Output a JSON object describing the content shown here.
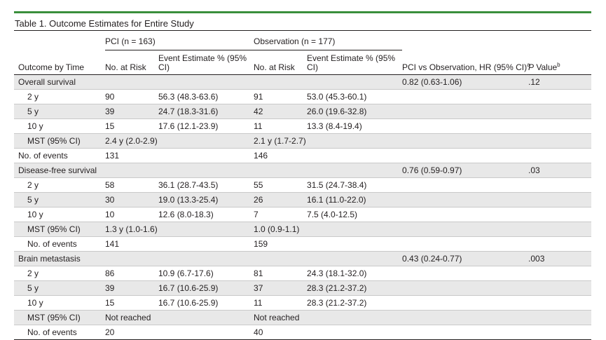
{
  "table_title": "Table 1. Outcome Estimates for Entire Study",
  "groups": {
    "pci": "PCI (n = 163)",
    "obs": "Observation (n = 177)"
  },
  "headers": {
    "outcome": "Outcome by Time",
    "pci_risk": "No. at Risk",
    "pci_est": "Event Estimate % (95% CI)",
    "obs_risk": "No. at Risk",
    "obs_est": "Event Estimate % (95% CI)",
    "hr": "PCI vs Observation, HR (95% CI)",
    "hr_sup": "a",
    "p": "P",
    "p_rest": " Value",
    "p_sup": "b"
  },
  "rows": [
    {
      "label": "Overall survival",
      "sub": false,
      "pci_risk": "",
      "pci_est": "",
      "obs_risk": "",
      "obs_est": "",
      "hr": "0.82 (0.63-1.06)",
      "p": ".12"
    },
    {
      "label": "2 y",
      "sub": true,
      "pci_risk": "90",
      "pci_est": "56.3 (48.3-63.6)",
      "obs_risk": "91",
      "obs_est": "53.0 (45.3-60.1)",
      "hr": "",
      "p": ""
    },
    {
      "label": "5 y",
      "sub": true,
      "pci_risk": "39",
      "pci_est": "24.7 (18.3-31.6)",
      "obs_risk": "42",
      "obs_est": "26.0 (19.6-32.8)",
      "hr": "",
      "p": ""
    },
    {
      "label": "10 y",
      "sub": true,
      "pci_risk": "15",
      "pci_est": "17.6 (12.1-23.9)",
      "obs_risk": "11",
      "obs_est": "13.3 (8.4-19.4)",
      "hr": "",
      "p": ""
    },
    {
      "label": "MST (95% CI)",
      "sub": true,
      "span": true,
      "pci_risk": "2.4 y (2.0-2.9)",
      "pci_est": "",
      "obs_risk": "2.1 y (1.7-2.7)",
      "obs_est": "",
      "hr": "",
      "p": ""
    },
    {
      "label": "No. of events",
      "sub": false,
      "pci_risk": "131",
      "pci_est": "",
      "obs_risk": "146",
      "obs_est": "",
      "hr": "",
      "p": ""
    },
    {
      "label": "Disease-free survival",
      "sub": false,
      "pci_risk": "",
      "pci_est": "",
      "obs_risk": "",
      "obs_est": "",
      "hr": "0.76 (0.59-0.97)",
      "p": ".03"
    },
    {
      "label": "2 y",
      "sub": true,
      "pci_risk": "58",
      "pci_est": "36.1 (28.7-43.5)",
      "obs_risk": "55",
      "obs_est": "31.5 (24.7-38.4)",
      "hr": "",
      "p": ""
    },
    {
      "label": "5 y",
      "sub": true,
      "pci_risk": "30",
      "pci_est": "19.0 (13.3-25.4)",
      "obs_risk": "26",
      "obs_est": "16.1 (11.0-22.0)",
      "hr": "",
      "p": ""
    },
    {
      "label": "10 y",
      "sub": true,
      "pci_risk": "10",
      "pci_est": "12.6 (8.0-18.3)",
      "obs_risk": "7",
      "obs_est": "7.5 (4.0-12.5)",
      "hr": "",
      "p": ""
    },
    {
      "label": "MST (95% CI)",
      "sub": true,
      "span": true,
      "pci_risk": "1.3 y (1.0-1.6)",
      "pci_est": "",
      "obs_risk": "1.0 (0.9-1.1)",
      "obs_est": "",
      "hr": "",
      "p": ""
    },
    {
      "label": "No. of events",
      "sub": true,
      "pci_risk": "141",
      "pci_est": "",
      "obs_risk": "159",
      "obs_est": "",
      "hr": "",
      "p": ""
    },
    {
      "label": "Brain metastasis",
      "sub": false,
      "pci_risk": "",
      "pci_est": "",
      "obs_risk": "",
      "obs_est": "",
      "hr": "0.43 (0.24-0.77)",
      "p": ".003"
    },
    {
      "label": "2 y",
      "sub": true,
      "pci_risk": "86",
      "pci_est": "10.9 (6.7-17.6)",
      "obs_risk": "81",
      "obs_est": "24.3 (18.1-32.0)",
      "hr": "",
      "p": ""
    },
    {
      "label": "5 y",
      "sub": true,
      "pci_risk": "39",
      "pci_est": "16.7 (10.6-25.9)",
      "obs_risk": "37",
      "obs_est": "28.3 (21.2-37.2)",
      "hr": "",
      "p": ""
    },
    {
      "label": "10 y",
      "sub": true,
      "pci_risk": "15",
      "pci_est": "16.7 (10.6-25.9)",
      "obs_risk": "11",
      "obs_est": "28.3 (21.2-37.2)",
      "hr": "",
      "p": ""
    },
    {
      "label": "MST (95% CI)",
      "sub": true,
      "span": true,
      "pci_risk": "Not reached",
      "pci_est": "",
      "obs_risk": "Not reached",
      "obs_est": "",
      "hr": "",
      "p": ""
    },
    {
      "label": "No. of events",
      "sub": true,
      "pci_risk": "20",
      "pci_est": "",
      "obs_risk": "40",
      "obs_est": "",
      "hr": "",
      "p": ""
    }
  ],
  "colors": {
    "accent_bar": "#3a8f3c",
    "row_shade": "#e8e8e8"
  }
}
